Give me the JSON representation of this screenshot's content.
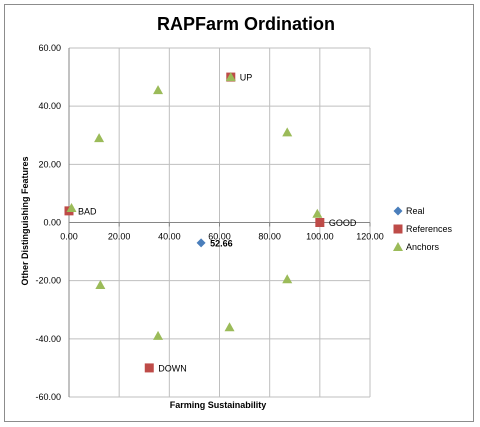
{
  "chart_data": {
    "type": "scatter",
    "title": "RAPFarm Ordination",
    "xlabel": "Farming Sustainability",
    "ylabel": "Other Distinguishing Features",
    "xlim": [
      0,
      120
    ],
    "ylim": [
      -60,
      60
    ],
    "x_ticks": [
      "0.00",
      "20.00",
      "40.00",
      "60.00",
      "80.00",
      "100.00",
      "120.00"
    ],
    "y_ticks": [
      "60.00",
      "40.00",
      "20.00",
      "0.00",
      "-20.00",
      "-40.00",
      "-60.00"
    ],
    "grid": true,
    "legend_position": "right",
    "series": [
      {
        "name": "Real",
        "marker": "diamond",
        "color": "#4a7ebb",
        "points": [
          {
            "x": 52.66,
            "y": -7,
            "label": "52.66"
          }
        ]
      },
      {
        "name": "References",
        "marker": "square",
        "color": "#be4b48",
        "points": [
          {
            "x": 0,
            "y": 4,
            "label": "BAD"
          },
          {
            "x": 64.5,
            "y": 50,
            "label": "UP"
          },
          {
            "x": 100,
            "y": 0,
            "label": "GOOD"
          },
          {
            "x": 32,
            "y": -50,
            "label": "DOWN"
          }
        ]
      },
      {
        "name": "Anchors",
        "marker": "triangle",
        "color": "#9bbb59",
        "points": [
          {
            "x": 64.5,
            "y": 50
          },
          {
            "x": 35.5,
            "y": 45.5
          },
          {
            "x": 12,
            "y": 29
          },
          {
            "x": 87,
            "y": 31
          },
          {
            "x": 1,
            "y": 5
          },
          {
            "x": 99,
            "y": 3
          },
          {
            "x": 12.5,
            "y": -21.5
          },
          {
            "x": 87,
            "y": -19.5
          },
          {
            "x": 64,
            "y": -36
          },
          {
            "x": 35.5,
            "y": -39
          }
        ]
      }
    ]
  }
}
